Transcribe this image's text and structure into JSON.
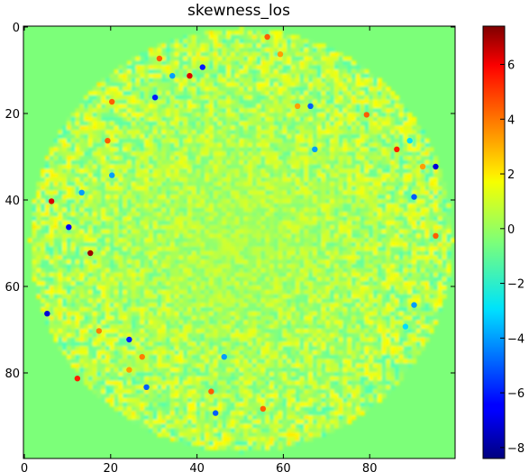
{
  "chart_data": {
    "type": "heatmap",
    "title": "skewness_los",
    "xlabel": "",
    "ylabel": "",
    "xlim": [
      0,
      99
    ],
    "ylim": [
      99,
      0
    ],
    "x_ticks": [
      "0",
      "20",
      "40",
      "60",
      "80"
    ],
    "y_ticks": [
      "0",
      "20",
      "40",
      "60",
      "80"
    ],
    "colorbar": {
      "colormap": "jet",
      "range": [
        -8.4,
        7.4
      ],
      "ticks": [
        "6",
        "4",
        "2",
        "0",
        "−2",
        "−4",
        "−6",
        "−8"
      ],
      "tick_values": [
        6,
        4,
        2,
        0,
        -2,
        -4,
        -6,
        -8
      ]
    },
    "grid": false,
    "background_value": 0.9,
    "disk": {
      "center_x": 50,
      "center_y": 49,
      "radius": 49
    },
    "notable_points": [
      {
        "x": 5,
        "y": 66,
        "value": -7
      },
      {
        "x": 6,
        "y": 40,
        "value": 6
      },
      {
        "x": 10,
        "y": 46,
        "value": -6.5
      },
      {
        "x": 12,
        "y": 81,
        "value": 5
      },
      {
        "x": 13,
        "y": 38,
        "value": -4
      },
      {
        "x": 15,
        "y": 52,
        "value": 7
      },
      {
        "x": 17,
        "y": 70,
        "value": 3.5
      },
      {
        "x": 19,
        "y": 26,
        "value": 4
      },
      {
        "x": 20,
        "y": 34,
        "value": -4
      },
      {
        "x": 20,
        "y": 17,
        "value": 4
      },
      {
        "x": 24,
        "y": 72,
        "value": -6
      },
      {
        "x": 24,
        "y": 79,
        "value": 3
      },
      {
        "x": 27,
        "y": 76,
        "value": 3.5
      },
      {
        "x": 28,
        "y": 83,
        "value": -5
      },
      {
        "x": 30,
        "y": 16,
        "value": -6
      },
      {
        "x": 31,
        "y": 7,
        "value": 4
      },
      {
        "x": 34,
        "y": 11,
        "value": -4
      },
      {
        "x": 38,
        "y": 11,
        "value": 6
      },
      {
        "x": 41,
        "y": 9,
        "value": -6
      },
      {
        "x": 43,
        "y": 84,
        "value": 4
      },
      {
        "x": 44,
        "y": 89,
        "value": -5
      },
      {
        "x": 46,
        "y": 76,
        "value": -4
      },
      {
        "x": 55,
        "y": 88,
        "value": 4
      },
      {
        "x": 56,
        "y": 2,
        "value": 4
      },
      {
        "x": 59,
        "y": 6,
        "value": 3
      },
      {
        "x": 63,
        "y": 18,
        "value": 3
      },
      {
        "x": 66,
        "y": 18,
        "value": -5
      },
      {
        "x": 67,
        "y": 28,
        "value": -4
      },
      {
        "x": 79,
        "y": 20,
        "value": 4
      },
      {
        "x": 86,
        "y": 28,
        "value": 5
      },
      {
        "x": 89,
        "y": 26,
        "value": -3
      },
      {
        "x": 90,
        "y": 39,
        "value": -5
      },
      {
        "x": 92,
        "y": 32,
        "value": 3
      },
      {
        "x": 95,
        "y": 32,
        "value": -7
      },
      {
        "x": 95,
        "y": 48,
        "value": 4
      },
      {
        "x": 90,
        "y": 64,
        "value": -4
      },
      {
        "x": 88,
        "y": 69,
        "value": -3
      }
    ]
  }
}
